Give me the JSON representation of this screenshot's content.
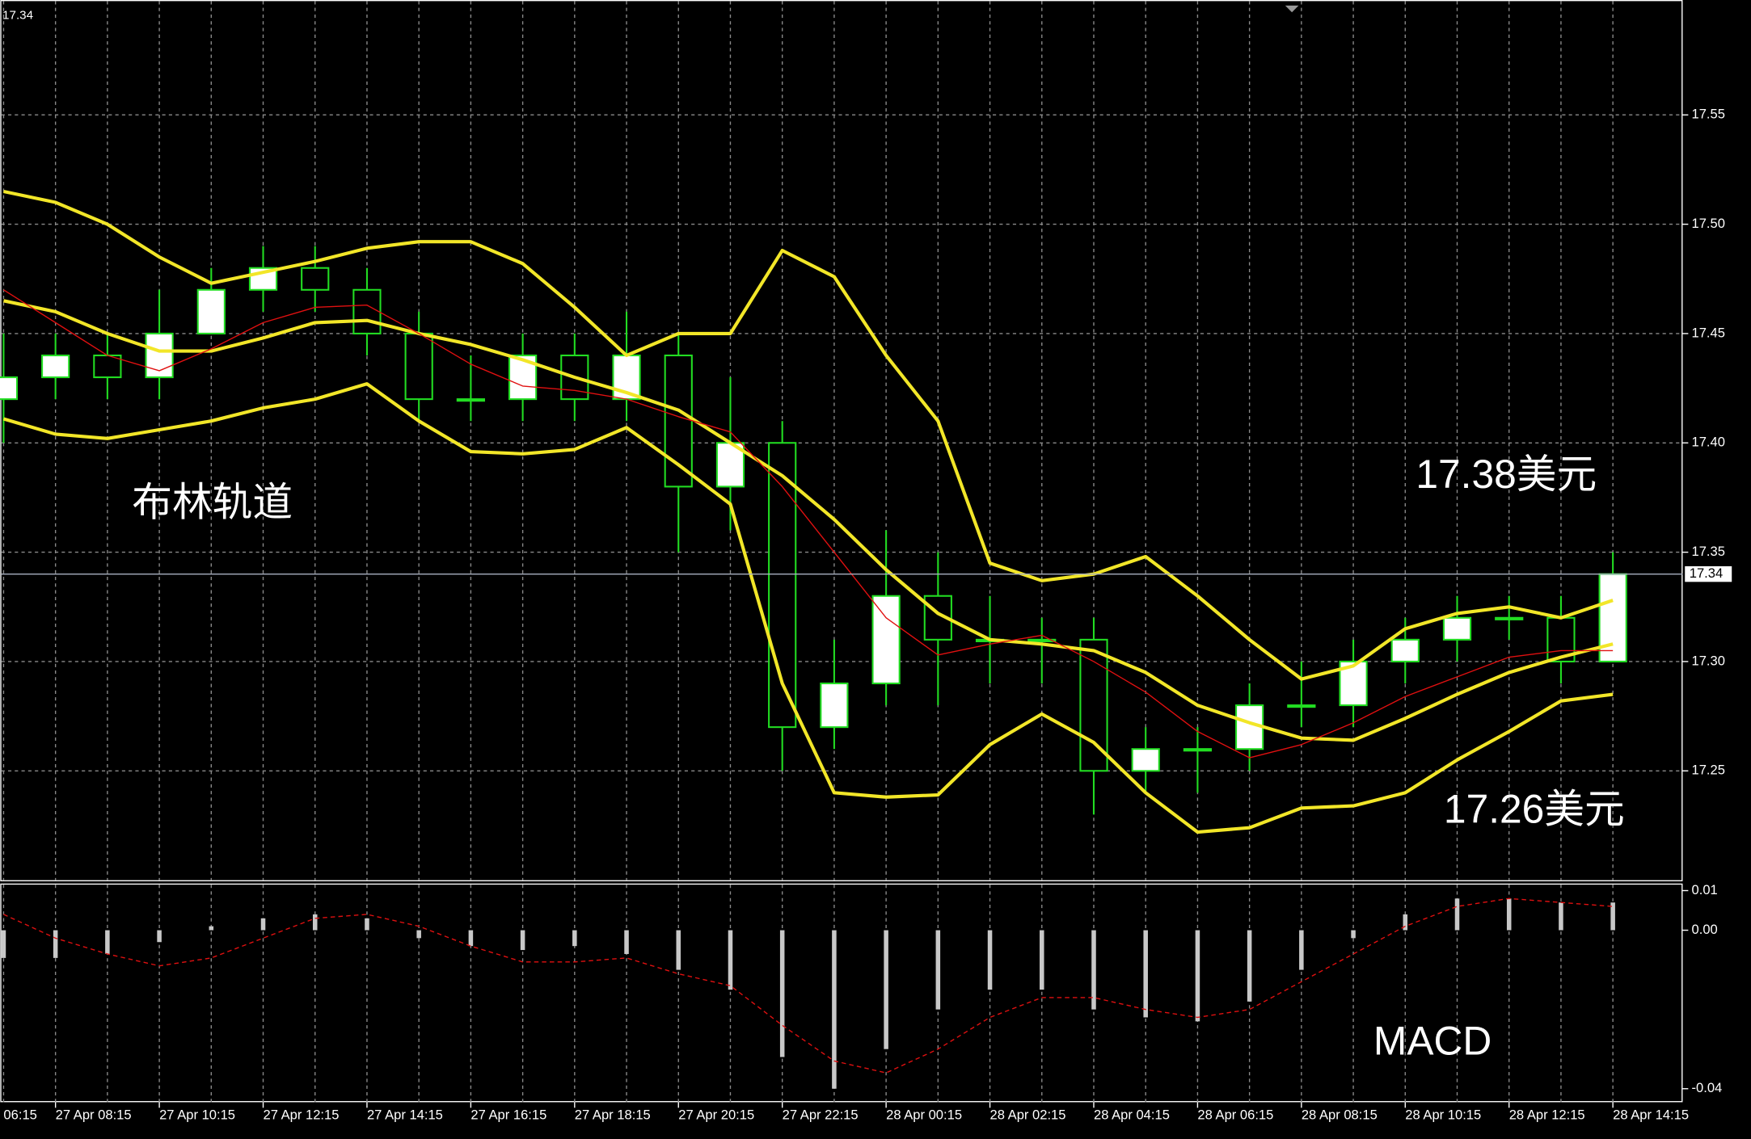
{
  "chart_data": [
    {
      "type": "candlestick",
      "categories": [
        "06:15",
        null,
        "27 Apr 08:15",
        null,
        "27 Apr 10:15",
        null,
        "27 Apr 12:15",
        null,
        "27 Apr 14:15",
        null,
        "27 Apr 16:15",
        null,
        "27 Apr 18:15",
        null,
        "27 Apr 20:15",
        null,
        "27 Apr 22:15",
        null,
        "28 Apr 00:15",
        null,
        "28 Apr 02:15",
        null,
        "28 Apr 04:15",
        null,
        "28 Apr 06:15",
        null,
        "28 Apr 08:15",
        null,
        "28 Apr 10:15",
        null,
        "28 Apr 12:15",
        null,
        "28 Apr 14:15"
      ],
      "open": [
        null,
        17.42,
        17.43,
        17.44,
        17.43,
        17.45,
        17.47,
        17.48,
        17.47,
        17.45,
        17.42,
        17.42,
        17.44,
        17.42,
        17.44,
        17.38,
        17.4,
        17.27,
        17.29,
        17.33,
        17.31,
        17.31,
        17.31,
        17.25,
        17.26,
        17.26,
        17.28,
        17.28,
        17.3,
        17.31,
        17.32,
        17.32,
        17.3
      ],
      "high": [
        null,
        17.45,
        17.45,
        17.45,
        17.47,
        17.48,
        17.49,
        17.49,
        17.48,
        17.46,
        17.44,
        17.45,
        17.45,
        17.46,
        17.45,
        17.43,
        17.41,
        17.31,
        17.36,
        17.35,
        17.33,
        17.32,
        17.32,
        17.27,
        17.27,
        17.29,
        17.3,
        17.31,
        17.32,
        17.33,
        17.33,
        17.33,
        17.35
      ],
      "low": [
        null,
        17.4,
        17.42,
        17.42,
        17.42,
        17.45,
        17.46,
        17.46,
        17.44,
        17.41,
        17.41,
        17.41,
        17.41,
        17.41,
        17.35,
        17.36,
        17.25,
        17.26,
        17.28,
        17.28,
        17.29,
        17.29,
        17.23,
        17.24,
        17.24,
        17.25,
        17.27,
        17.27,
        17.29,
        17.3,
        17.31,
        17.29,
        17.3
      ],
      "close": [
        null,
        17.43,
        17.44,
        17.43,
        17.45,
        17.47,
        17.48,
        17.47,
        17.45,
        17.42,
        17.42,
        17.44,
        17.42,
        17.44,
        17.38,
        17.4,
        17.27,
        17.29,
        17.33,
        17.31,
        17.31,
        17.31,
        17.25,
        17.26,
        17.26,
        17.28,
        17.28,
        17.3,
        17.31,
        17.32,
        17.32,
        17.3,
        17.34
      ],
      "candle_color": "#22dd22",
      "series": [
        {
          "color": "#f2e628",
          "width": 3,
          "values": [
            null,
            17.515,
            17.51,
            17.5,
            17.485,
            17.473,
            17.478,
            17.483,
            17.489,
            17.492,
            17.492,
            17.482,
            17.462,
            17.44,
            17.45,
            17.45,
            17.488,
            17.476,
            17.44,
            17.41,
            17.345,
            17.337,
            17.34,
            17.348,
            17.33,
            17.31,
            17.292,
            17.298,
            17.315,
            17.322,
            17.325,
            17.32,
            17.328
          ]
        },
        {
          "color": "#f2e628",
          "width": 3,
          "values": [
            null,
            17.465,
            17.46,
            17.45,
            17.442,
            17.442,
            17.448,
            17.455,
            17.456,
            17.45,
            17.445,
            17.438,
            17.43,
            17.423,
            17.415,
            17.4,
            17.385,
            17.365,
            17.342,
            17.322,
            17.31,
            17.308,
            17.305,
            17.295,
            17.28,
            17.272,
            17.265,
            17.264,
            17.274,
            17.285,
            17.295,
            17.302,
            17.308
          ]
        },
        {
          "color": "#f2e628",
          "width": 3,
          "values": [
            null,
            17.411,
            17.404,
            17.402,
            17.406,
            17.41,
            17.416,
            17.42,
            17.427,
            17.41,
            17.396,
            17.395,
            17.397,
            17.407,
            17.39,
            17.372,
            17.29,
            17.24,
            17.238,
            17.239,
            17.262,
            17.276,
            17.263,
            17.24,
            17.222,
            17.224,
            17.233,
            17.234,
            17.24,
            17.255,
            17.268,
            17.282,
            17.285
          ]
        },
        {
          "color": "#e01010",
          "width": 1,
          "values": [
            null,
            17.47,
            17.455,
            17.44,
            17.433,
            17.443,
            17.455,
            17.462,
            17.463,
            17.45,
            17.436,
            17.426,
            17.424,
            17.42,
            17.412,
            17.405,
            17.38,
            17.35,
            17.32,
            17.303,
            17.308,
            17.312,
            17.3,
            17.286,
            17.268,
            17.256,
            17.262,
            17.272,
            17.284,
            17.293,
            17.302,
            17.305,
            17.305
          ]
        }
      ],
      "ylim": [
        17.2,
        17.6
      ],
      "yticks": [
        17.25,
        {
          "value": 17.3,
          "label": "17.30"
        },
        17.35,
        {
          "value": 17.4,
          "label": "17.40"
        },
        17.45,
        {
          "value": 17.5,
          "label": "17.50"
        },
        17.55
      ],
      "last_price": 17.34,
      "grid": true,
      "annotations": [
        "布林轨道",
        "17.38美元",
        "17.26美元"
      ]
    },
    {
      "type": "bar",
      "color": "#c8c8c8",
      "values": [
        null,
        -0.007,
        -0.007,
        -0.006,
        -0.003,
        0.001,
        0.003,
        0.004,
        0.003,
        -0.002,
        -0.004,
        -0.005,
        -0.004,
        -0.006,
        -0.01,
        -0.015,
        -0.032,
        -0.04,
        -0.03,
        -0.02,
        -0.015,
        -0.015,
        -0.02,
        -0.022,
        -0.023,
        -0.018,
        -0.01,
        -0.002,
        0.004,
        0.008,
        0.008,
        0.007,
        0.007
      ],
      "series": [
        {
          "color": "#e01010",
          "dashed": true,
          "values": [
            null,
            0.004,
            -0.002,
            -0.006,
            -0.009,
            -0.007,
            -0.002,
            0.003,
            0.004,
            0.001,
            -0.004,
            -0.008,
            -0.008,
            -0.007,
            -0.011,
            -0.014,
            -0.024,
            -0.033,
            -0.036,
            -0.03,
            -0.022,
            -0.017,
            -0.017,
            -0.02,
            -0.022,
            -0.02,
            -0.013,
            -0.006,
            0.001,
            0.006,
            0.008,
            0.007,
            0.006
          ]
        }
      ],
      "ylim": [
        -0.0434,
        0.0115
      ],
      "yticks": [
        -0.04,
        {
          "value": 0,
          "label": "0.00"
        },
        0.01
      ],
      "annotations": [
        "MACD"
      ]
    }
  ]
}
